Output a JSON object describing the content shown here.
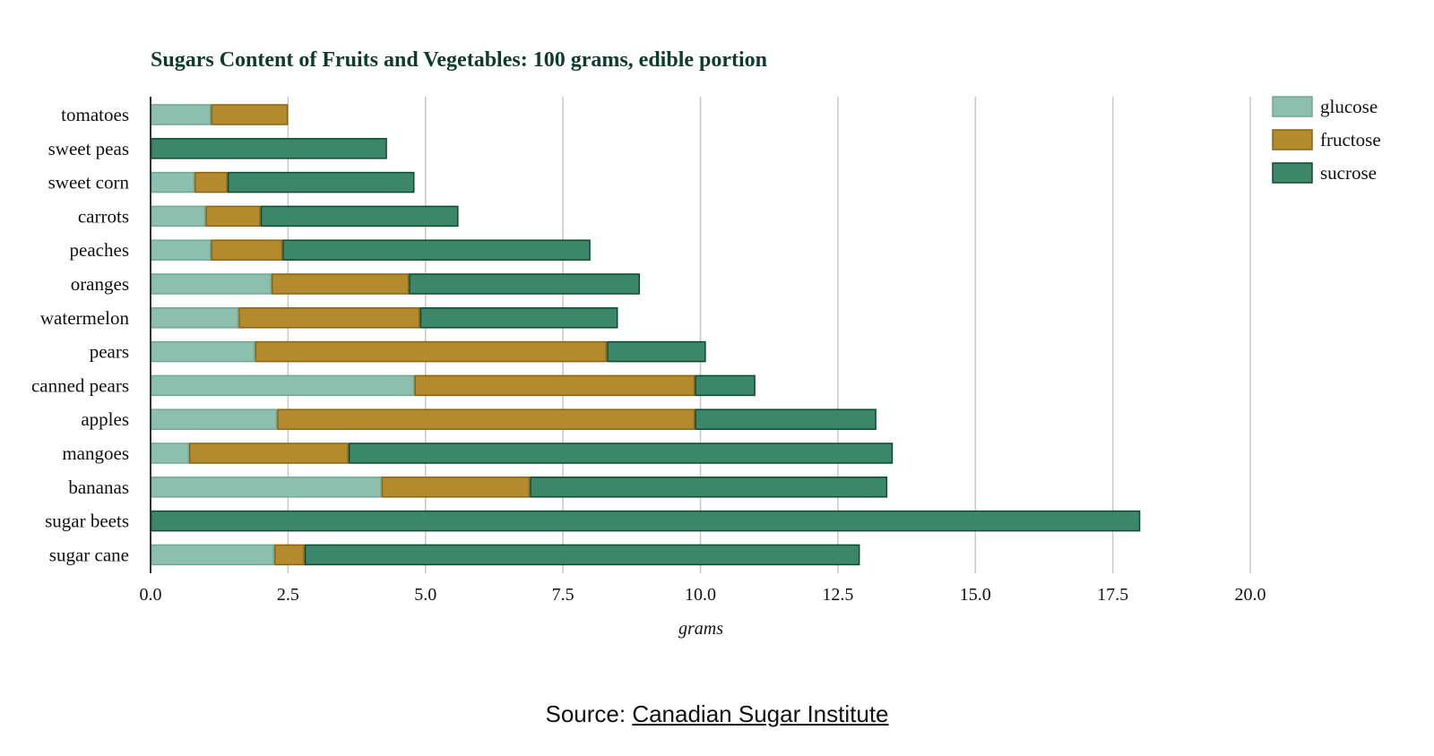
{
  "colors": {
    "glucose": "#8dbfae",
    "fructose": "#b48a2e",
    "sucrose": "#3c8769",
    "glucose_border": "#6fa893",
    "fructose_border": "#8a6412",
    "sucrose_border": "#0e4a32"
  },
  "source": {
    "prefix": "Source: ",
    "link_text": "Canadian Sugar Institute"
  },
  "chart_data": {
    "type": "bar",
    "orientation": "horizontal",
    "stacked": true,
    "title": "Sugars Content of Fruits and Vegetables: 100 grams, edible portion",
    "xlabel": "grams",
    "ylabel": "",
    "xlim": [
      0,
      20
    ],
    "xticks": [
      "0.0",
      "2.5",
      "5.0",
      "7.5",
      "10.0",
      "12.5",
      "15.0",
      "17.5",
      "20.0"
    ],
    "grid": true,
    "legend_position": "top-right",
    "categories": [
      "tomatoes",
      "sweet peas",
      "sweet corn",
      "carrots",
      "peaches",
      "oranges",
      "watermelon",
      "pears",
      "canned pears",
      "apples",
      "mangoes",
      "bananas",
      "sugar beets",
      "sugar cane"
    ],
    "series": [
      {
        "name": "glucose",
        "values": [
          1.1,
          0,
          0.8,
          1.0,
          1.1,
          2.2,
          1.6,
          1.9,
          4.8,
          2.3,
          0.7,
          4.2,
          0,
          2.25
        ]
      },
      {
        "name": "fructose",
        "values": [
          1.4,
          0,
          0.6,
          1.0,
          1.3,
          2.5,
          3.3,
          6.4,
          5.1,
          7.6,
          2.9,
          2.7,
          0,
          0.55
        ]
      },
      {
        "name": "sucrose",
        "values": [
          0,
          4.3,
          3.4,
          3.6,
          5.6,
          4.2,
          3.6,
          1.8,
          1.1,
          3.3,
          9.9,
          6.5,
          18.0,
          10.1
        ]
      }
    ]
  }
}
